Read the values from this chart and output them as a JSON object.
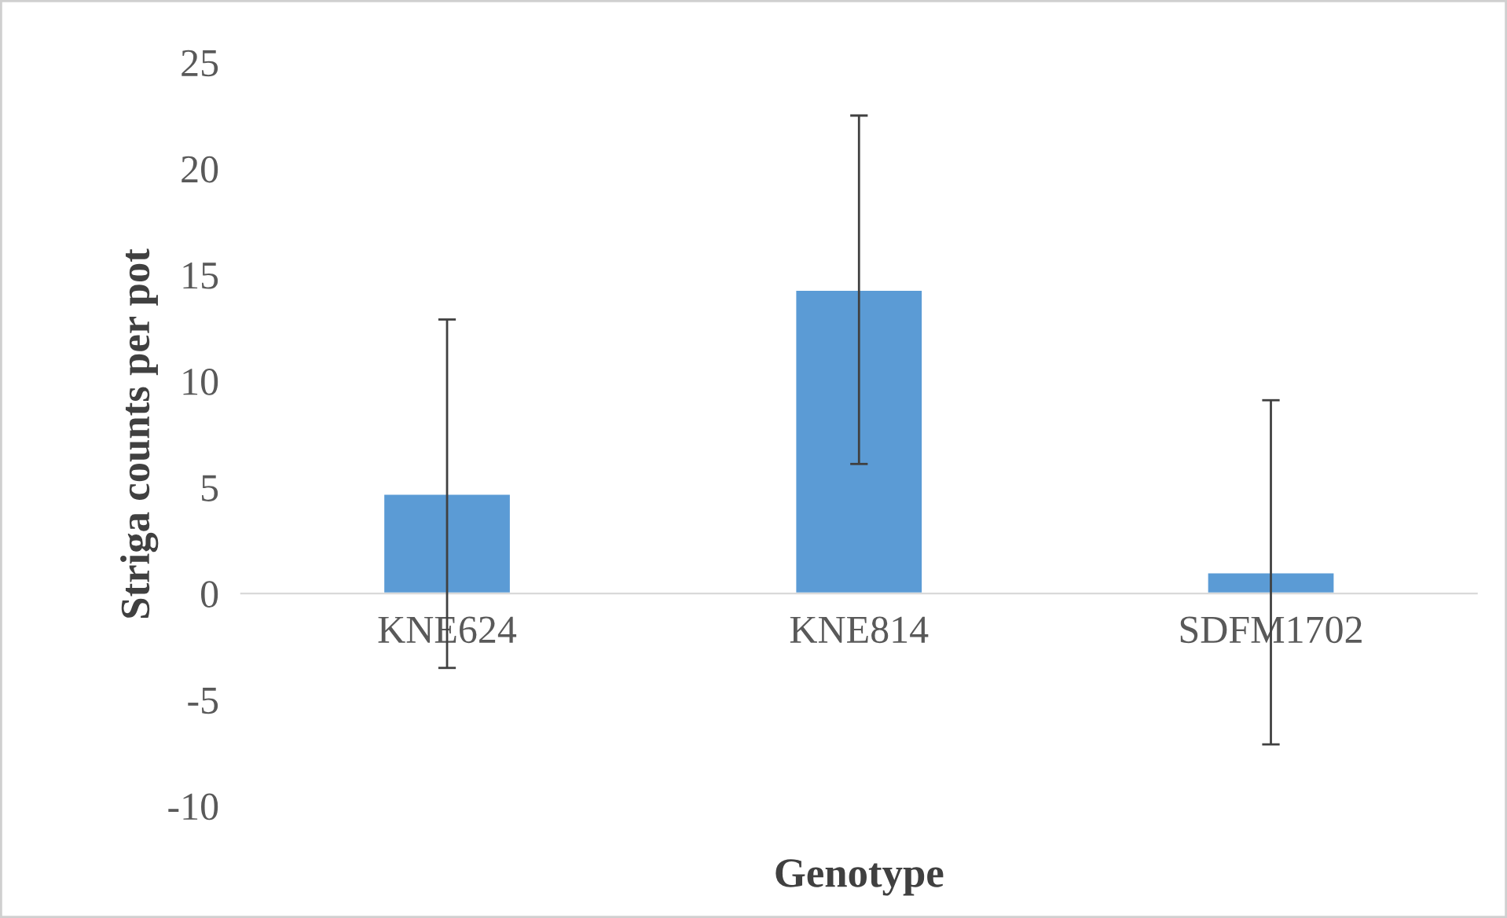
{
  "chart_data": {
    "type": "bar",
    "xlabel": "Genotype",
    "ylabel": "Striga counts per pot",
    "categories": [
      "KNE624",
      "KNE814",
      "SDFM1702"
    ],
    "values": [
      4.7,
      14.3,
      1.0
    ],
    "errors": [
      8.2,
      8.2,
      8.1
    ],
    "color": "#5b9bd5",
    "ylim": [
      -10,
      25
    ],
    "yticks": [
      -10,
      -5,
      0,
      5,
      10,
      15,
      20,
      25
    ],
    "grid": false
  }
}
